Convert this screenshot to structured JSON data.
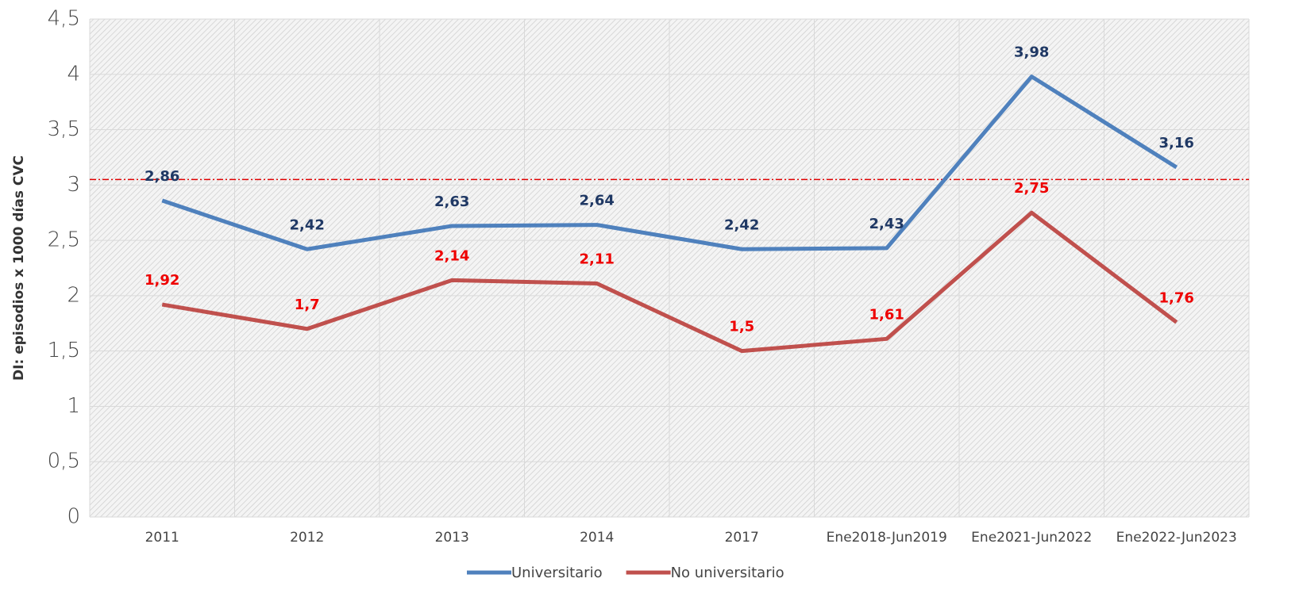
{
  "chart_data": {
    "type": "line",
    "y_label": "DI: episodios x 1000 días CVC",
    "categories": [
      "2011",
      "2012",
      "2013",
      "2014",
      "2017",
      "Ene2018-Jun2019",
      "Ene2021-Jun2022",
      "Ene2022-Jun2023"
    ],
    "series": [
      {
        "name": "Universitario",
        "color": "#4f81bd",
        "label_color": "#1f3864",
        "values": [
          2.86,
          2.42,
          2.63,
          2.64,
          2.42,
          2.43,
          3.98,
          3.16
        ],
        "value_labels": [
          "2,86",
          "2,42",
          "2,63",
          "2,64",
          "2,42",
          "2,43",
          "3,98",
          "3,16"
        ]
      },
      {
        "name": "No universitario",
        "color": "#c0504d",
        "label_color": "#ee0000",
        "values": [
          1.92,
          1.7,
          2.14,
          2.11,
          1.5,
          1.61,
          2.75,
          1.76
        ],
        "value_labels": [
          "1,92",
          "1,7",
          "2,14",
          "2,11",
          "1,5",
          "1,61",
          "2,75",
          "1,76"
        ]
      }
    ],
    "ylim": [
      0,
      4.5
    ],
    "yticks": [
      0,
      {
        "value": 0.5,
        "label": "0,5"
      },
      1,
      {
        "value": 1.5,
        "label": "1,5"
      },
      2,
      {
        "value": 2.5,
        "label": "2,5"
      },
      3,
      {
        "value": 3.5,
        "label": "3,5"
      },
      4,
      {
        "value": 4.5,
        "label": "4,5"
      }
    ],
    "reference_line": {
      "value": 3.05,
      "color": "#e00000"
    },
    "legend": "bottom"
  }
}
